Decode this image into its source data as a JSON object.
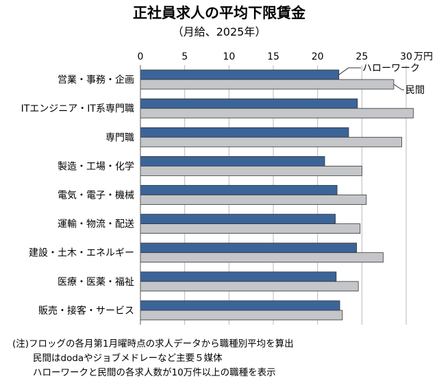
{
  "chart_data": {
    "type": "bar",
    "title": "正社員求人の平均下限賃金",
    "subtitle": "（月給、2025年）",
    "unit_label": "万円",
    "xlim": [
      0,
      30
    ],
    "xticks": [
      0,
      5,
      10,
      15,
      20,
      25,
      30
    ],
    "categories": [
      "営業・事務・企画",
      "ITエンジニア・IT系専門職",
      "専門職",
      "製造・工場・化学",
      "電気・電子・機械",
      "運輸・物流・配送",
      "建設・土木・エネルギー",
      "医療・医薬・福祉",
      "販売・接客・サービス"
    ],
    "series": [
      {
        "name": "ハローワーク",
        "color": "#3b6499",
        "values": [
          22.4,
          24.5,
          23.5,
          20.8,
          22.2,
          22.0,
          24.4,
          22.1,
          22.5
        ]
      },
      {
        "name": "民間",
        "color": "#c4c6c9",
        "values": [
          28.6,
          30.8,
          29.5,
          25.0,
          25.5,
          24.8,
          27.4,
          24.6,
          22.8
        ]
      }
    ],
    "legend": "top-right",
    "grid": true
  },
  "notes": [
    "(注)フロッグの各月第1月曜時点の求人データから職種別平均を算出",
    "民間はdodaやジョブメドレーなど主要５媒体",
    "ハローワークと民間の各求人数が10万件以上の職種を表示"
  ]
}
